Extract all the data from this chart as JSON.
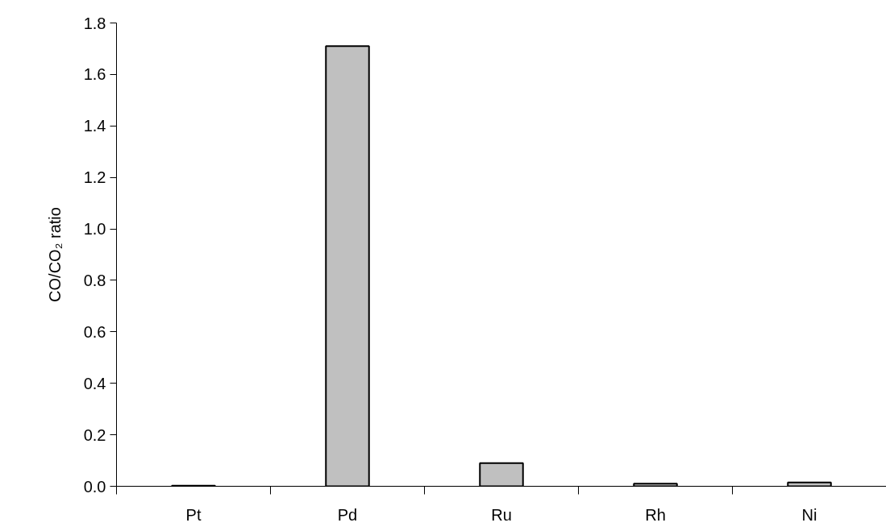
{
  "chart_data": {
    "type": "bar",
    "ylabel": "CO/CO₂ ratio",
    "categories": [
      "Pt",
      "Pd",
      "Ru",
      "Rh",
      "Ni"
    ],
    "values": [
      0.002,
      1.71,
      0.09,
      0.01,
      0.015
    ],
    "color": "#c0c0c0",
    "ylim": [
      0,
      1.8
    ],
    "yticks": [
      {
        "value": 0,
        "label": "0.0"
      },
      {
        "value": 0.2,
        "label": "0.2"
      },
      {
        "value": 0.4,
        "label": "0.4"
      },
      {
        "value": 0.6,
        "label": "0.6"
      },
      {
        "value": 0.8,
        "label": "0.8"
      },
      {
        "value": 1.0,
        "label": "1.0"
      },
      {
        "value": 1.2,
        "label": "1.2"
      },
      {
        "value": 1.4,
        "label": "1.4"
      },
      {
        "value": 1.6,
        "label": "1.6"
      },
      {
        "value": 1.8,
        "label": "1.8"
      }
    ],
    "grid": false
  }
}
